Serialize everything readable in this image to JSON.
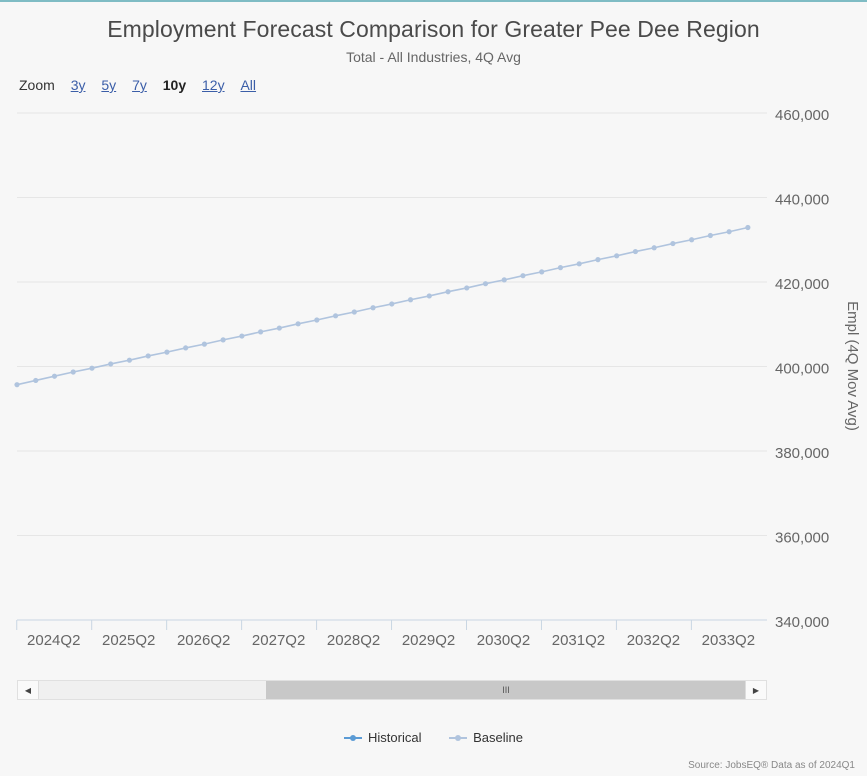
{
  "title": "Employment Forecast Comparison for Greater Pee Dee Region",
  "subtitle": "Total - All Industries, 4Q Avg",
  "zoom": {
    "label": "Zoom",
    "options": [
      "3y",
      "5y",
      "7y",
      "10y",
      "12y",
      "All"
    ],
    "active": "10y"
  },
  "navigator": {
    "thumb_glyph": "III"
  },
  "legend": {
    "historical": "Historical",
    "baseline": "Baseline"
  },
  "source": "Source: JobsEQ® Data as of 2024Q1",
  "colors": {
    "historical": "#5b9bd5",
    "baseline": "#b0c4de",
    "grid": "#e6e6e6",
    "axis_text": "#666666"
  },
  "chart_data": {
    "type": "line",
    "title": "Employment Forecast Comparison for Greater Pee Dee Region",
    "subtitle": "Total - All Industries, 4Q Avg",
    "ylabel": "Empl (4Q Mov Avg)",
    "ylim": [
      340000,
      460000
    ],
    "yticks": [
      340000,
      360000,
      380000,
      400000,
      420000,
      440000,
      460000
    ],
    "ytick_labels": [
      "340,000",
      "360,000",
      "380,000",
      "400,000",
      "420,000",
      "440,000",
      "460,000"
    ],
    "xticks": [
      "2024Q2",
      "2025Q2",
      "2026Q2",
      "2027Q2",
      "2028Q2",
      "2029Q2",
      "2030Q2",
      "2031Q2",
      "2032Q2",
      "2033Q2"
    ],
    "grid": true,
    "legend_position": "bottom",
    "series": [
      {
        "name": "Historical",
        "x": [],
        "values": []
      },
      {
        "name": "Baseline",
        "x": [
          "2024Q1",
          "2024Q2",
          "2024Q3",
          "2024Q4",
          "2025Q1",
          "2025Q2",
          "2025Q3",
          "2025Q4",
          "2026Q1",
          "2026Q2",
          "2026Q3",
          "2026Q4",
          "2027Q1",
          "2027Q2",
          "2027Q3",
          "2027Q4",
          "2028Q1",
          "2028Q2",
          "2028Q3",
          "2028Q4",
          "2029Q1",
          "2029Q2",
          "2029Q3",
          "2029Q4",
          "2030Q1",
          "2030Q2",
          "2030Q3",
          "2030Q4",
          "2031Q1",
          "2031Q2",
          "2031Q3",
          "2031Q4",
          "2032Q1",
          "2032Q2",
          "2032Q3",
          "2032Q4",
          "2033Q1",
          "2033Q2",
          "2033Q3",
          "2033Q4"
        ],
        "values": [
          395700,
          396700,
          397700,
          398700,
          399600,
          400600,
          401500,
          402500,
          403400,
          404400,
          405300,
          406300,
          407200,
          408200,
          409100,
          410100,
          411000,
          412000,
          412900,
          413900,
          414800,
          415800,
          416700,
          417700,
          418600,
          419600,
          420500,
          421500,
          422400,
          423400,
          424300,
          425300,
          426200,
          427200,
          428100,
          429100,
          430000,
          431000,
          431900,
          432900
        ]
      }
    ]
  }
}
